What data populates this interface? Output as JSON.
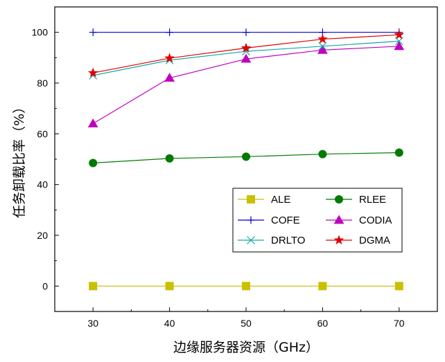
{
  "chart_data": {
    "type": "line",
    "xlabel": "边缘服务器资源（GHz）",
    "ylabel": "任务卸载比率（%）",
    "x": [
      30,
      40,
      50,
      60,
      70
    ],
    "xlim": [
      25,
      75
    ],
    "ylim": [
      -10,
      110
    ],
    "xticks": [
      30,
      40,
      50,
      60,
      70
    ],
    "yticks": [
      0,
      20,
      40,
      60,
      80,
      100
    ],
    "grid": false,
    "legend_position": "lower-right",
    "series": [
      {
        "name": "ALE",
        "values": [
          0,
          0,
          0,
          0,
          0
        ],
        "color": "#c8c000",
        "marker": "square"
      },
      {
        "name": "RLEE",
        "values": [
          48.5,
          50.3,
          51.0,
          52.0,
          52.6
        ],
        "color": "#007a00",
        "marker": "circle"
      },
      {
        "name": "COFE",
        "values": [
          100,
          100,
          100,
          100,
          100
        ],
        "color": "#0000cc",
        "marker": "plus"
      },
      {
        "name": "CODIA",
        "values": [
          64,
          82,
          89.5,
          93,
          94.5
        ],
        "color": "#c000c0",
        "marker": "triangle"
      },
      {
        "name": "DRLTO",
        "values": [
          83,
          89,
          92.5,
          94.5,
          96.5
        ],
        "color": "#16a6a6",
        "marker": "x"
      },
      {
        "name": "DGMA",
        "values": [
          84,
          89.8,
          93.8,
          97.3,
          99
        ],
        "color": "#e00000",
        "marker": "star"
      }
    ]
  }
}
